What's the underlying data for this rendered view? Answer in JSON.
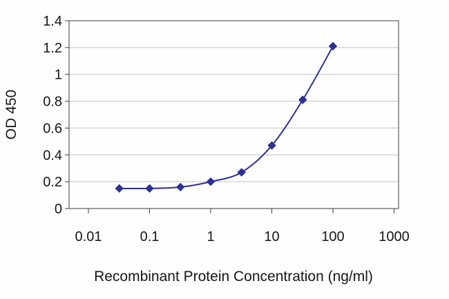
{
  "page": {
    "background_color": "#fefefe"
  },
  "chart_data": {
    "type": "line",
    "title": "",
    "xlabel": "Recombinant Protein Concentration (ng/ml)",
    "ylabel": "OD 450",
    "x_scale": "log",
    "xlim": [
      0.01,
      1000
    ],
    "ylim": [
      0,
      1.4
    ],
    "x_ticks": [
      "0.01",
      "0.1",
      "1",
      "10",
      "100",
      "1000"
    ],
    "y_ticks": [
      "1.4",
      "1.2",
      "1",
      "0.8",
      "0.6",
      "0.4",
      "0.2",
      "0"
    ],
    "grid": true,
    "legend": false,
    "grid_color": "#c2c2c2",
    "axis_color": "#3c3c3c",
    "series": [
      {
        "name": "OD 450",
        "marker": "diamond",
        "color": "#2d2f92",
        "x": [
          0.032,
          0.1,
          0.32,
          1,
          3.2,
          10,
          32,
          100
        ],
        "y": [
          0.15,
          0.15,
          0.16,
          0.2,
          0.27,
          0.47,
          0.81,
          1.21
        ]
      }
    ]
  }
}
